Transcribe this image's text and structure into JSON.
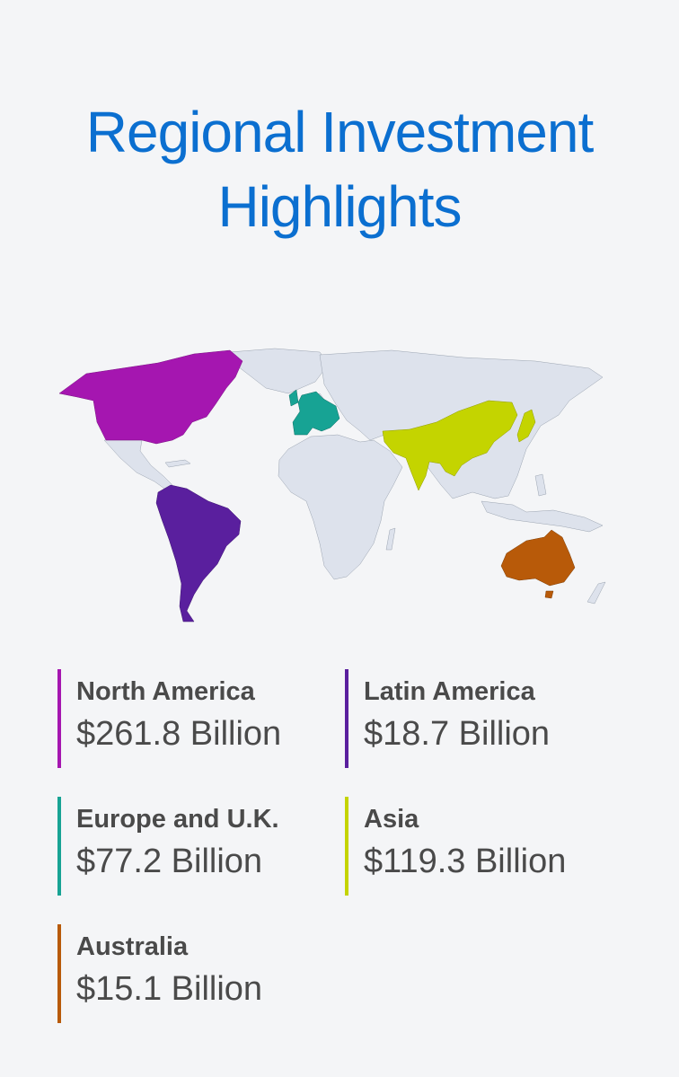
{
  "title": "Regional Investment Highlights",
  "colors": {
    "title": "#0b6fd0",
    "land": "#dde2ec",
    "border": "#9aa3b0",
    "text": "#4a4a4a"
  },
  "regions": [
    {
      "name": "North America",
      "value": "$261.8 Billion",
      "color": "#a516b0"
    },
    {
      "name": "Latin America",
      "value": "$18.7 Billion",
      "color": "#5a1f9e"
    },
    {
      "name": "Europe and U.K.",
      "value": "$77.2 Billion",
      "color": "#17a394"
    },
    {
      "name": "Asia",
      "value": "$119.3 Billion",
      "color": "#c4d400"
    },
    {
      "name": "Australia",
      "value": "$15.1 Billion",
      "color": "#b85a09"
    }
  ]
}
